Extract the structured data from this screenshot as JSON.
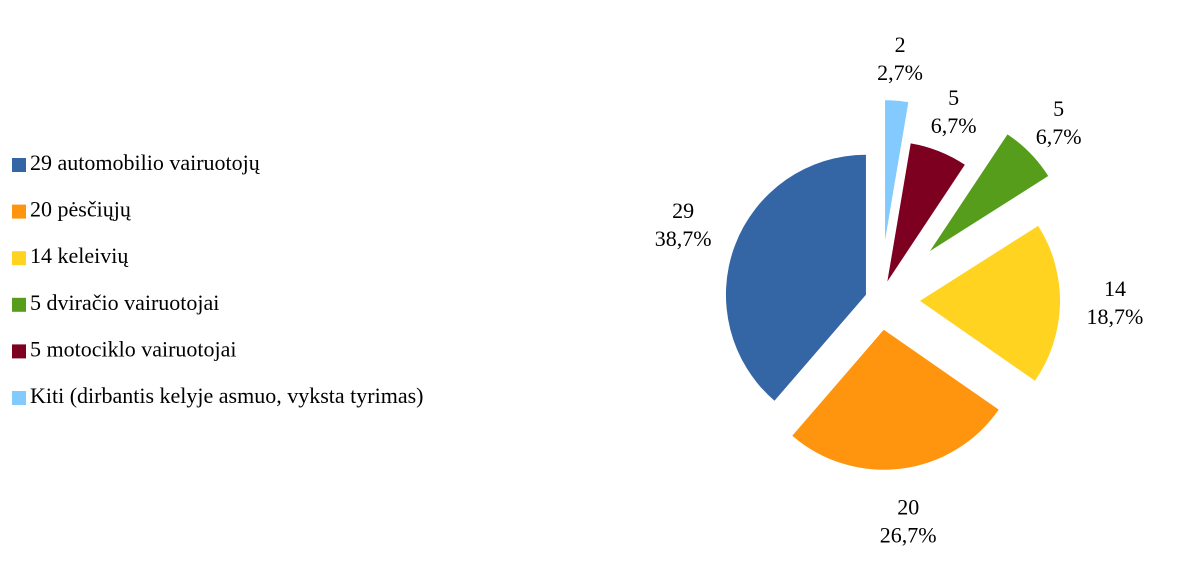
{
  "chart_data": {
    "type": "pie",
    "series": [
      {
        "name": "29 automobilio vairuotojų",
        "color": "#3465a4",
        "values": [
          29
        ],
        "percents": [
          38.7
        ],
        "percent_labels": [
          "38,7%"
        ]
      },
      {
        "name": "20 pėsčiųjų",
        "color": "#ff950e",
        "values": [
          20
        ],
        "percents": [
          26.7
        ],
        "percent_labels": [
          "26,7%"
        ]
      },
      {
        "name": "14 keleivių",
        "color": "#ffd320",
        "values": [
          14
        ],
        "percents": [
          18.7
        ],
        "percent_labels": [
          "18,7%"
        ]
      },
      {
        "name": "5 dviračio vairuotojai",
        "color": "#579d1c",
        "values": [
          5
        ],
        "percents": [
          6.7
        ],
        "percent_labels": [
          "6,7%"
        ]
      },
      {
        "name": "5 motociklo vairuotojai",
        "color": "#7e0021",
        "values": [
          5
        ],
        "percents": [
          6.7
        ],
        "percent_labels": [
          "6,7%"
        ]
      },
      {
        "name": "Kiti (dirbantis kelyje asmuo, vyksta tyrimas)",
        "color": "#83caff",
        "values": [
          2
        ],
        "percents": [
          2.7
        ],
        "percent_labels": [
          "2,7%"
        ]
      }
    ],
    "legend": "left"
  }
}
